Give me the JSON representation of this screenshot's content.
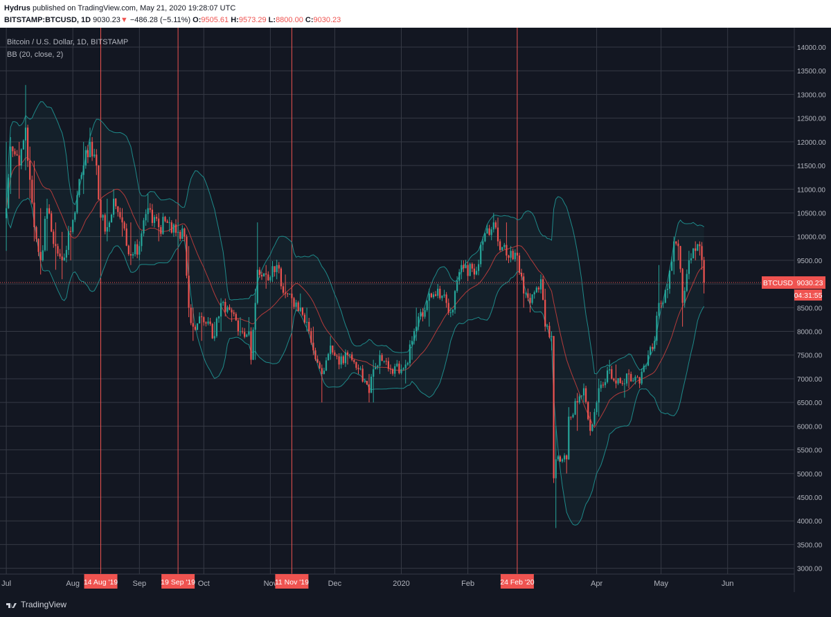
{
  "header": {
    "author": "Hydrus",
    "published_text": "published on TradingView.com, May 21, 2020 19:28:07 UTC",
    "symbol": "BITSTAMP:BTCUSD, 1D",
    "last": "9030.23",
    "change": "−486.28 (−5.11%)",
    "o_label": "O:",
    "o_value": "9505.61",
    "h_label": "H:",
    "h_value": "9573.29",
    "l_label": "L:",
    "l_value": "8800.00",
    "c_label": "C:",
    "c_value": "9030.23"
  },
  "footer": {
    "brand": "TradingView"
  },
  "colors": {
    "background": "#131722",
    "up": "#26a69a",
    "down": "#ef5350",
    "band": "#1e8a8a",
    "basis": "#b33b3b",
    "grid": "#363a45",
    "text": "#b2b5be"
  },
  "chart_data": {
    "type": "candlestick",
    "title": "Bitcoin / U.S. Dollar, 1D, BITSTAMP",
    "indicator": "BB (20, close, 2)",
    "price_axis": {
      "ylim": [
        2800,
        14400
      ],
      "ticks": [
        "14000.00",
        "13500.00",
        "13000.00",
        "12500.00",
        "12000.00",
        "11500.00",
        "11000.00",
        "10500.00",
        "10000.00",
        "9500.00",
        "9000.00",
        "8500.00",
        "8000.00",
        "7500.00",
        "7000.00",
        "6500.00",
        "6000.00",
        "5500.00",
        "5000.00",
        "4500.00",
        "4000.00",
        "3500.00",
        "3000.00"
      ]
    },
    "time_axis": {
      "labels": [
        {
          "t": "Jul",
          "d": "2019-07-01"
        },
        {
          "t": "Aug",
          "d": "2019-08-01"
        },
        {
          "t": "Sep",
          "d": "2019-09-01"
        },
        {
          "t": "Oct",
          "d": "2019-10-01"
        },
        {
          "t": "Nov",
          "d": "2019-11-01"
        },
        {
          "t": "Dec",
          "d": "2019-12-01"
        },
        {
          "t": "2020",
          "d": "2020-01-01"
        },
        {
          "t": "Feb",
          "d": "2020-02-01"
        },
        {
          "t": "Apr",
          "d": "2020-04-01"
        },
        {
          "t": "May",
          "d": "2020-05-01"
        },
        {
          "t": "Jun",
          "d": "2020-06-01"
        }
      ]
    },
    "markers": [
      {
        "label": "14 Aug '19",
        "date": "2019-08-14"
      },
      {
        "label": "19 Sep '19",
        "date": "2019-09-19"
      },
      {
        "label": "11 Nov '19",
        "date": "2019-11-11"
      },
      {
        "label": "24 Feb '20",
        "date": "2020-02-24"
      }
    ],
    "last_price": {
      "symbol": "BTCUSD",
      "value": "9030.23",
      "countdown": "04:31:55"
    },
    "keypoints": [
      {
        "d": "2019-07-01",
        "c": 10600,
        "lo": 9700,
        "hi": 12000
      },
      {
        "d": "2019-07-03",
        "c": 11900,
        "lo": 10900,
        "hi": 12100
      },
      {
        "d": "2019-07-07",
        "c": 11500,
        "lo": 10800,
        "hi": 12000
      },
      {
        "d": "2019-07-10",
        "c": 12300,
        "lo": 11400,
        "hi": 13200
      },
      {
        "d": "2019-07-12",
        "c": 11200,
        "lo": 10800,
        "hi": 11900
      },
      {
        "d": "2019-07-14",
        "c": 10200,
        "lo": 9900,
        "hi": 11600
      },
      {
        "d": "2019-07-17",
        "c": 9500,
        "lo": 9200,
        "hi": 10600
      },
      {
        "d": "2019-07-20",
        "c": 10600,
        "lo": 9700,
        "hi": 10800
      },
      {
        "d": "2019-07-24",
        "c": 9800,
        "lo": 9300,
        "hi": 10300
      },
      {
        "d": "2019-07-27",
        "c": 9500,
        "lo": 9100,
        "hi": 10100
      },
      {
        "d": "2019-07-31",
        "c": 10100,
        "lo": 9500,
        "hi": 10200
      },
      {
        "d": "2019-08-06",
        "c": 11500,
        "lo": 10900,
        "hi": 12000
      },
      {
        "d": "2019-08-09",
        "c": 12000,
        "lo": 11700,
        "hi": 12300
      },
      {
        "d": "2019-08-12",
        "c": 11500,
        "lo": 11300,
        "hi": 11800
      },
      {
        "d": "2019-08-14",
        "c": 10400,
        "lo": 10000,
        "hi": 10900
      },
      {
        "d": "2019-08-17",
        "c": 10200,
        "lo": 9900,
        "hi": 10800
      },
      {
        "d": "2019-08-20",
        "c": 10800,
        "lo": 10400,
        "hi": 11000
      },
      {
        "d": "2019-08-24",
        "c": 10300,
        "lo": 10000,
        "hi": 10600
      },
      {
        "d": "2019-08-28",
        "c": 9600,
        "lo": 9400,
        "hi": 10300
      },
      {
        "d": "2019-09-01",
        "c": 9800,
        "lo": 9500,
        "hi": 9900
      },
      {
        "d": "2019-09-05",
        "c": 10600,
        "lo": 10300,
        "hi": 10900
      },
      {
        "d": "2019-09-10",
        "c": 10200,
        "lo": 9900,
        "hi": 10500
      },
      {
        "d": "2019-09-15",
        "c": 10300,
        "lo": 10100,
        "hi": 10400
      },
      {
        "d": "2019-09-19",
        "c": 10100,
        "lo": 9800,
        "hi": 10300
      },
      {
        "d": "2019-09-22",
        "c": 10000,
        "lo": 9900,
        "hi": 10100
      },
      {
        "d": "2019-09-24",
        "c": 8500,
        "lo": 8300,
        "hi": 9800
      },
      {
        "d": "2019-09-26",
        "c": 8100,
        "lo": 7800,
        "hi": 8500
      },
      {
        "d": "2019-09-30",
        "c": 8300,
        "lo": 7800,
        "hi": 8400
      },
      {
        "d": "2019-10-06",
        "c": 7900,
        "lo": 7800,
        "hi": 8200
      },
      {
        "d": "2019-10-09",
        "c": 8600,
        "lo": 8000,
        "hi": 8700
      },
      {
        "d": "2019-10-14",
        "c": 8400,
        "lo": 8200,
        "hi": 8500
      },
      {
        "d": "2019-10-18",
        "c": 8000,
        "lo": 7900,
        "hi": 8300
      },
      {
        "d": "2019-10-22",
        "c": 8000,
        "lo": 7900,
        "hi": 8300
      },
      {
        "d": "2019-10-23",
        "c": 7400,
        "lo": 7300,
        "hi": 8000
      },
      {
        "d": "2019-10-25",
        "c": 8600,
        "lo": 7400,
        "hi": 8900
      },
      {
        "d": "2019-10-26",
        "c": 9300,
        "lo": 8600,
        "hi": 10300
      },
      {
        "d": "2019-10-30",
        "c": 9200,
        "lo": 8900,
        "hi": 9400
      },
      {
        "d": "2019-11-04",
        "c": 9400,
        "lo": 9100,
        "hi": 9500
      },
      {
        "d": "2019-11-08",
        "c": 8800,
        "lo": 8700,
        "hi": 9200
      },
      {
        "d": "2019-11-11",
        "c": 8700,
        "lo": 8600,
        "hi": 9000
      },
      {
        "d": "2019-11-15",
        "c": 8500,
        "lo": 8400,
        "hi": 8800
      },
      {
        "d": "2019-11-18",
        "c": 8200,
        "lo": 8000,
        "hi": 8500
      },
      {
        "d": "2019-11-21",
        "c": 7600,
        "lo": 7500,
        "hi": 8100
      },
      {
        "d": "2019-11-25",
        "c": 7100,
        "lo": 6500,
        "hi": 7300
      },
      {
        "d": "2019-11-29",
        "c": 7700,
        "lo": 7400,
        "hi": 7900
      },
      {
        "d": "2019-12-03",
        "c": 7300,
        "lo": 7200,
        "hi": 7500
      },
      {
        "d": "2019-12-07",
        "c": 7500,
        "lo": 7300,
        "hi": 7600
      },
      {
        "d": "2019-12-12",
        "c": 7200,
        "lo": 7100,
        "hi": 7300
      },
      {
        "d": "2019-12-17",
        "c": 6700,
        "lo": 6500,
        "hi": 7100
      },
      {
        "d": "2019-12-19",
        "c": 7200,
        "lo": 6500,
        "hi": 7400
      },
      {
        "d": "2019-12-22",
        "c": 7500,
        "lo": 7100,
        "hi": 7600
      },
      {
        "d": "2019-12-27",
        "c": 7200,
        "lo": 7100,
        "hi": 7300
      },
      {
        "d": "2020-01-01",
        "c": 7200,
        "lo": 7100,
        "hi": 7300
      },
      {
        "d": "2020-01-03",
        "c": 7300,
        "lo": 6900,
        "hi": 7400
      },
      {
        "d": "2020-01-06",
        "c": 7800,
        "lo": 7400,
        "hi": 7900
      },
      {
        "d": "2020-01-08",
        "c": 8100,
        "lo": 7800,
        "hi": 8500
      },
      {
        "d": "2020-01-14",
        "c": 8800,
        "lo": 8100,
        "hi": 8900
      },
      {
        "d": "2020-01-18",
        "c": 8900,
        "lo": 8700,
        "hi": 9000
      },
      {
        "d": "2020-01-22",
        "c": 8600,
        "lo": 8500,
        "hi": 8800
      },
      {
        "d": "2020-01-24",
        "c": 8400,
        "lo": 8300,
        "hi": 8500
      },
      {
        "d": "2020-01-29",
        "c": 9400,
        "lo": 9100,
        "hi": 9500
      },
      {
        "d": "2020-02-04",
        "c": 9200,
        "lo": 9100,
        "hi": 9400
      },
      {
        "d": "2020-02-08",
        "c": 9900,
        "lo": 9700,
        "hi": 10000
      },
      {
        "d": "2020-02-13",
        "c": 10300,
        "lo": 10100,
        "hi": 10500
      },
      {
        "d": "2020-02-15",
        "c": 9900,
        "lo": 9800,
        "hi": 10400
      },
      {
        "d": "2020-02-19",
        "c": 9600,
        "lo": 9500,
        "hi": 10300
      },
      {
        "d": "2020-02-21",
        "c": 9700,
        "lo": 9600,
        "hi": 9800
      },
      {
        "d": "2020-02-24",
        "c": 9600,
        "lo": 9500,
        "hi": 10000
      },
      {
        "d": "2020-02-27",
        "c": 8800,
        "lo": 8500,
        "hi": 9000
      },
      {
        "d": "2020-03-01",
        "c": 8600,
        "lo": 8400,
        "hi": 8800
      },
      {
        "d": "2020-03-06",
        "c": 9100,
        "lo": 8900,
        "hi": 9200
      },
      {
        "d": "2020-03-08",
        "c": 8100,
        "lo": 8000,
        "hi": 8900
      },
      {
        "d": "2020-03-11",
        "c": 7900,
        "lo": 7600,
        "hi": 8000
      },
      {
        "d": "2020-03-12",
        "c": 4900,
        "lo": 4800,
        "hi": 7900
      },
      {
        "d": "2020-03-13",
        "c": 5300,
        "lo": 3850,
        "hi": 6000
      },
      {
        "d": "2020-03-18",
        "c": 5300,
        "lo": 5000,
        "hi": 5400
      },
      {
        "d": "2020-03-19",
        "c": 6200,
        "lo": 5300,
        "hi": 6400
      },
      {
        "d": "2020-03-23",
        "c": 6500,
        "lo": 5900,
        "hi": 6700
      },
      {
        "d": "2020-03-26",
        "c": 6800,
        "lo": 6500,
        "hi": 6900
      },
      {
        "d": "2020-03-29",
        "c": 5900,
        "lo": 5800,
        "hi": 6300
      },
      {
        "d": "2020-04-02",
        "c": 6800,
        "lo": 6200,
        "hi": 7000
      },
      {
        "d": "2020-04-07",
        "c": 7200,
        "lo": 7100,
        "hi": 7400
      },
      {
        "d": "2020-04-10",
        "c": 6900,
        "lo": 6800,
        "hi": 7300
      },
      {
        "d": "2020-04-14",
        "c": 6900,
        "lo": 6600,
        "hi": 7000
      },
      {
        "d": "2020-04-16",
        "c": 7100,
        "lo": 6800,
        "hi": 7200
      },
      {
        "d": "2020-04-21",
        "c": 6900,
        "lo": 6800,
        "hi": 7000
      },
      {
        "d": "2020-04-25",
        "c": 7500,
        "lo": 7400,
        "hi": 7600
      },
      {
        "d": "2020-04-28",
        "c": 7800,
        "lo": 7700,
        "hi": 7900
      },
      {
        "d": "2020-04-30",
        "c": 8600,
        "lo": 8400,
        "hi": 9400
      },
      {
        "d": "2020-05-04",
        "c": 8900,
        "lo": 8700,
        "hi": 9000
      },
      {
        "d": "2020-05-07",
        "c": 9900,
        "lo": 9200,
        "hi": 10000
      },
      {
        "d": "2020-05-09",
        "c": 9800,
        "lo": 9500,
        "hi": 9900
      },
      {
        "d": "2020-05-11",
        "c": 8600,
        "lo": 8100,
        "hi": 9000
      },
      {
        "d": "2020-05-14",
        "c": 9500,
        "lo": 9100,
        "hi": 9700
      },
      {
        "d": "2020-05-17",
        "c": 9700,
        "lo": 9500,
        "hi": 9900
      },
      {
        "d": "2020-05-19",
        "c": 9800,
        "lo": 9600,
        "hi": 9900
      },
      {
        "d": "2020-05-20",
        "c": 9506,
        "lo": 9300,
        "hi": 9700
      },
      {
        "d": "2020-05-21",
        "c": 9030,
        "lo": 8800,
        "hi": 9573
      }
    ]
  }
}
